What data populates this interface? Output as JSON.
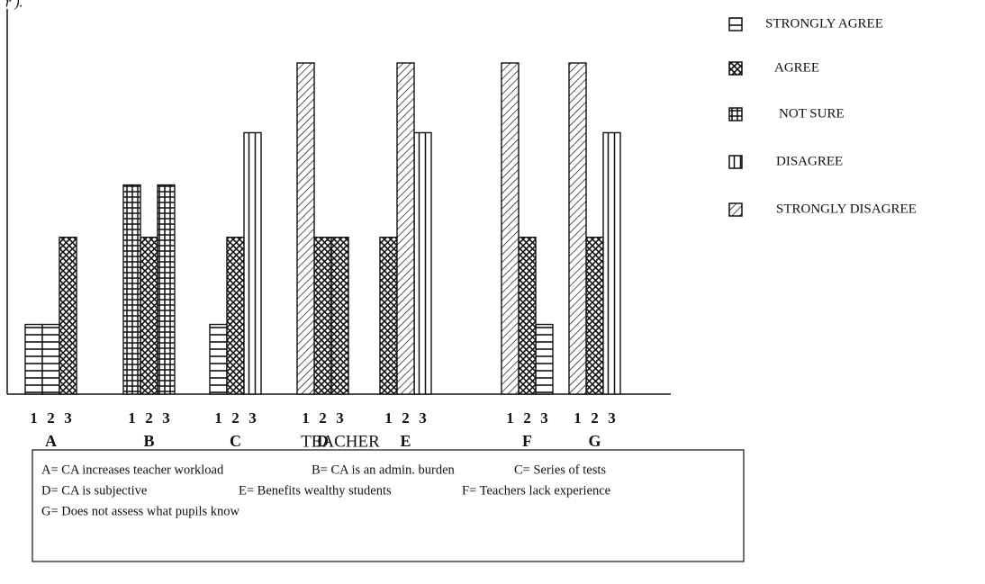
{
  "chart_data": {
    "type": "bar",
    "caption_fragment": "r ).",
    "xlabel": "TEACHER",
    "groups": [
      "A",
      "B",
      "C",
      "D",
      "E",
      "F",
      "G"
    ],
    "categories": [
      "1",
      "2",
      "3",
      "1",
      "2",
      "3",
      "1",
      "2",
      "3",
      "1",
      "2",
      "3",
      "1",
      "2",
      "3",
      "1",
      "2",
      "3",
      "1",
      "2",
      "3"
    ],
    "series": [
      {
        "name": "STRONGLY AGREE",
        "color": "#111",
        "pattern": "horizontal",
        "values": [
          1,
          1,
          null,
          null,
          null,
          null,
          1,
          null,
          null,
          null,
          null,
          null,
          null,
          null,
          null,
          null,
          null,
          1,
          null,
          null,
          null
        ]
      },
      {
        "name": "AGREE",
        "color": "#111",
        "pattern": "crosshatch",
        "values": [
          null,
          null,
          2.25,
          null,
          2.25,
          null,
          null,
          2.25,
          null,
          null,
          2.25,
          2.25,
          2.25,
          null,
          null,
          null,
          2.25,
          null,
          null,
          2.25,
          null
        ]
      },
      {
        "name": "NOT SURE",
        "color": "#111",
        "pattern": "grid",
        "values": [
          null,
          null,
          null,
          3,
          null,
          3,
          null,
          null,
          null,
          null,
          null,
          null,
          null,
          null,
          null,
          null,
          null,
          null,
          null,
          null,
          null
        ]
      },
      {
        "name": "DISAGREE",
        "color": "#111",
        "pattern": "vertical",
        "values": [
          null,
          null,
          null,
          null,
          null,
          null,
          null,
          null,
          3.75,
          null,
          null,
          null,
          null,
          null,
          3.75,
          null,
          null,
          null,
          null,
          null,
          3.75
        ]
      },
      {
        "name": "STRONGLY DISAGREE",
        "color": "#111",
        "pattern": "diagonal",
        "values": [
          null,
          null,
          null,
          null,
          null,
          null,
          null,
          null,
          null,
          4.75,
          null,
          null,
          null,
          4.75,
          null,
          4.75,
          null,
          null,
          4.75,
          null,
          null
        ]
      }
    ],
    "notes": [
      "A= CA increases teacher workload",
      "B= CA is an admin. burden",
      "C= Series of tests",
      "D= CA is subjective",
      "E= Benefits wealthy students",
      "F= Teachers lack  experience",
      "G= Does not assess what pupils know"
    ]
  }
}
